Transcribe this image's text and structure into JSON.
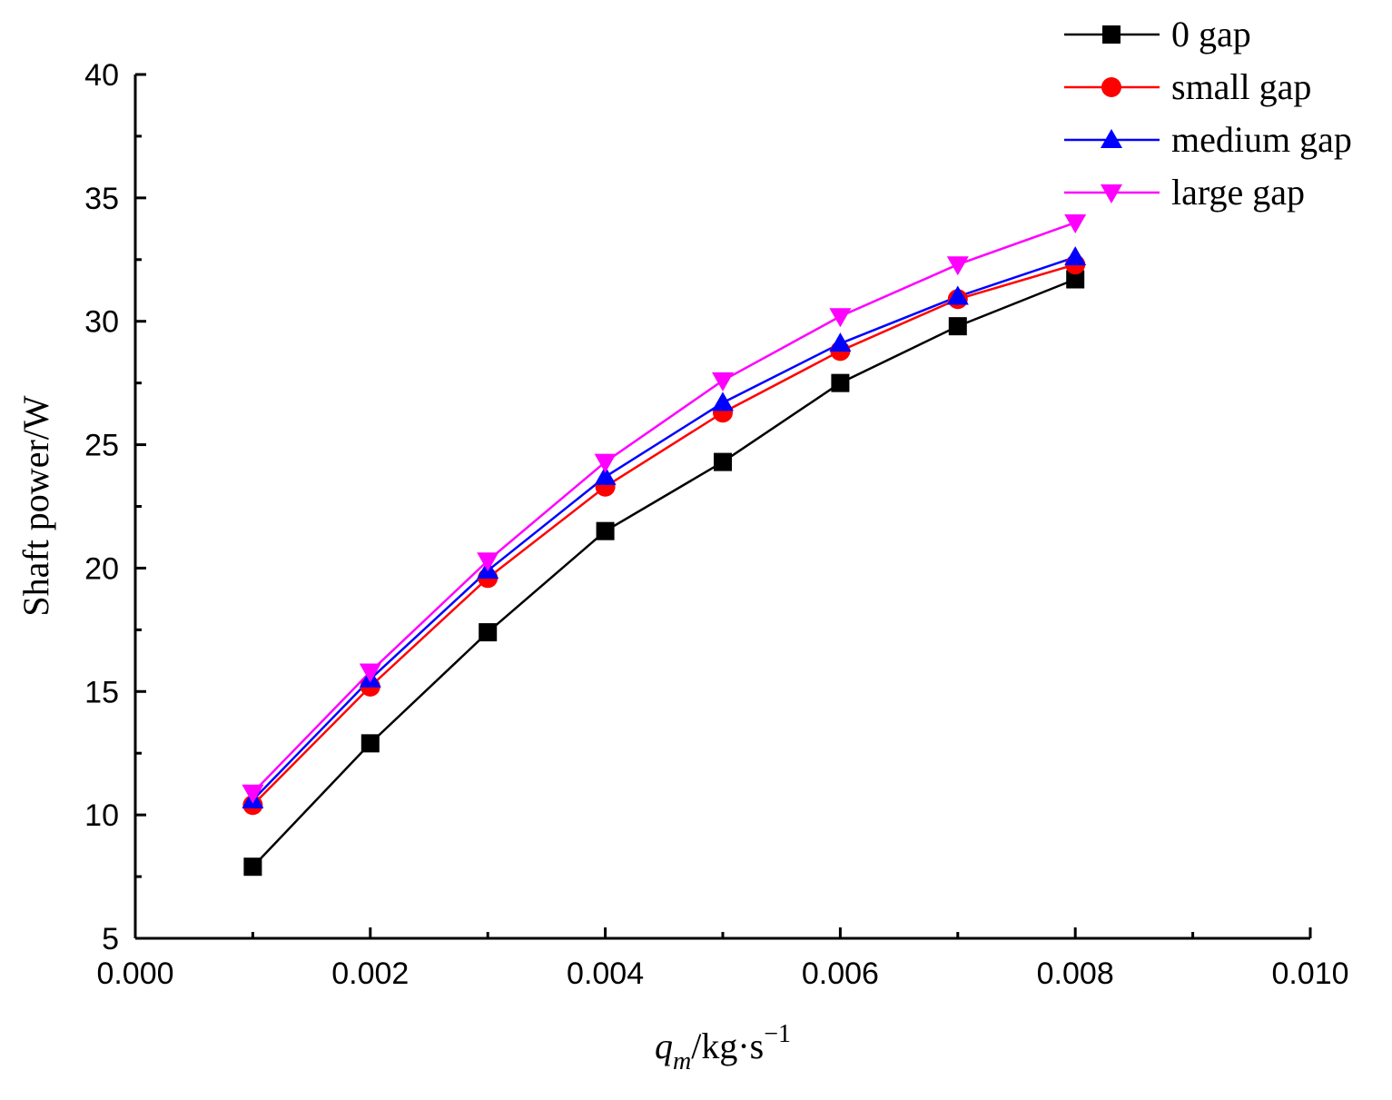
{
  "chart_data": {
    "type": "line",
    "title": "",
    "xlabel": {
      "var": "q",
      "sub": "m",
      "unit": "/kg·s",
      "sup": "−1"
    },
    "ylabel": "Shaft power/W",
    "xlim": [
      0.0,
      0.01
    ],
    "ylim": [
      5,
      40
    ],
    "xticks": [
      "0.000",
      "0.002",
      "0.004",
      "0.006",
      "0.008",
      "0.010"
    ],
    "yticks": [
      "5",
      "10",
      "15",
      "20",
      "25",
      "30",
      "35",
      "40"
    ],
    "x": [
      0.001,
      0.002,
      0.003,
      0.004,
      0.005,
      0.006,
      0.007,
      0.008
    ],
    "series": [
      {
        "name": "0 gap",
        "color": "#000000",
        "marker": "square",
        "values": [
          7.9,
          12.9,
          17.4,
          21.5,
          24.3,
          27.5,
          29.8,
          31.7
        ]
      },
      {
        "name": "small gap",
        "color": "#ff0000",
        "marker": "circle",
        "values": [
          10.4,
          15.2,
          19.6,
          23.3,
          26.3,
          28.8,
          30.9,
          32.3
        ]
      },
      {
        "name": "medium gap",
        "color": "#0000ff",
        "marker": "triangle-up",
        "values": [
          10.6,
          15.5,
          19.9,
          23.7,
          26.7,
          29.1,
          31.0,
          32.6
        ]
      },
      {
        "name": "large gap",
        "color": "#ff00ff",
        "marker": "triangle-down",
        "values": [
          10.9,
          15.8,
          20.3,
          24.3,
          27.6,
          30.2,
          32.3,
          34.0
        ]
      }
    ],
    "legend_position": "top-right",
    "grid": false
  }
}
